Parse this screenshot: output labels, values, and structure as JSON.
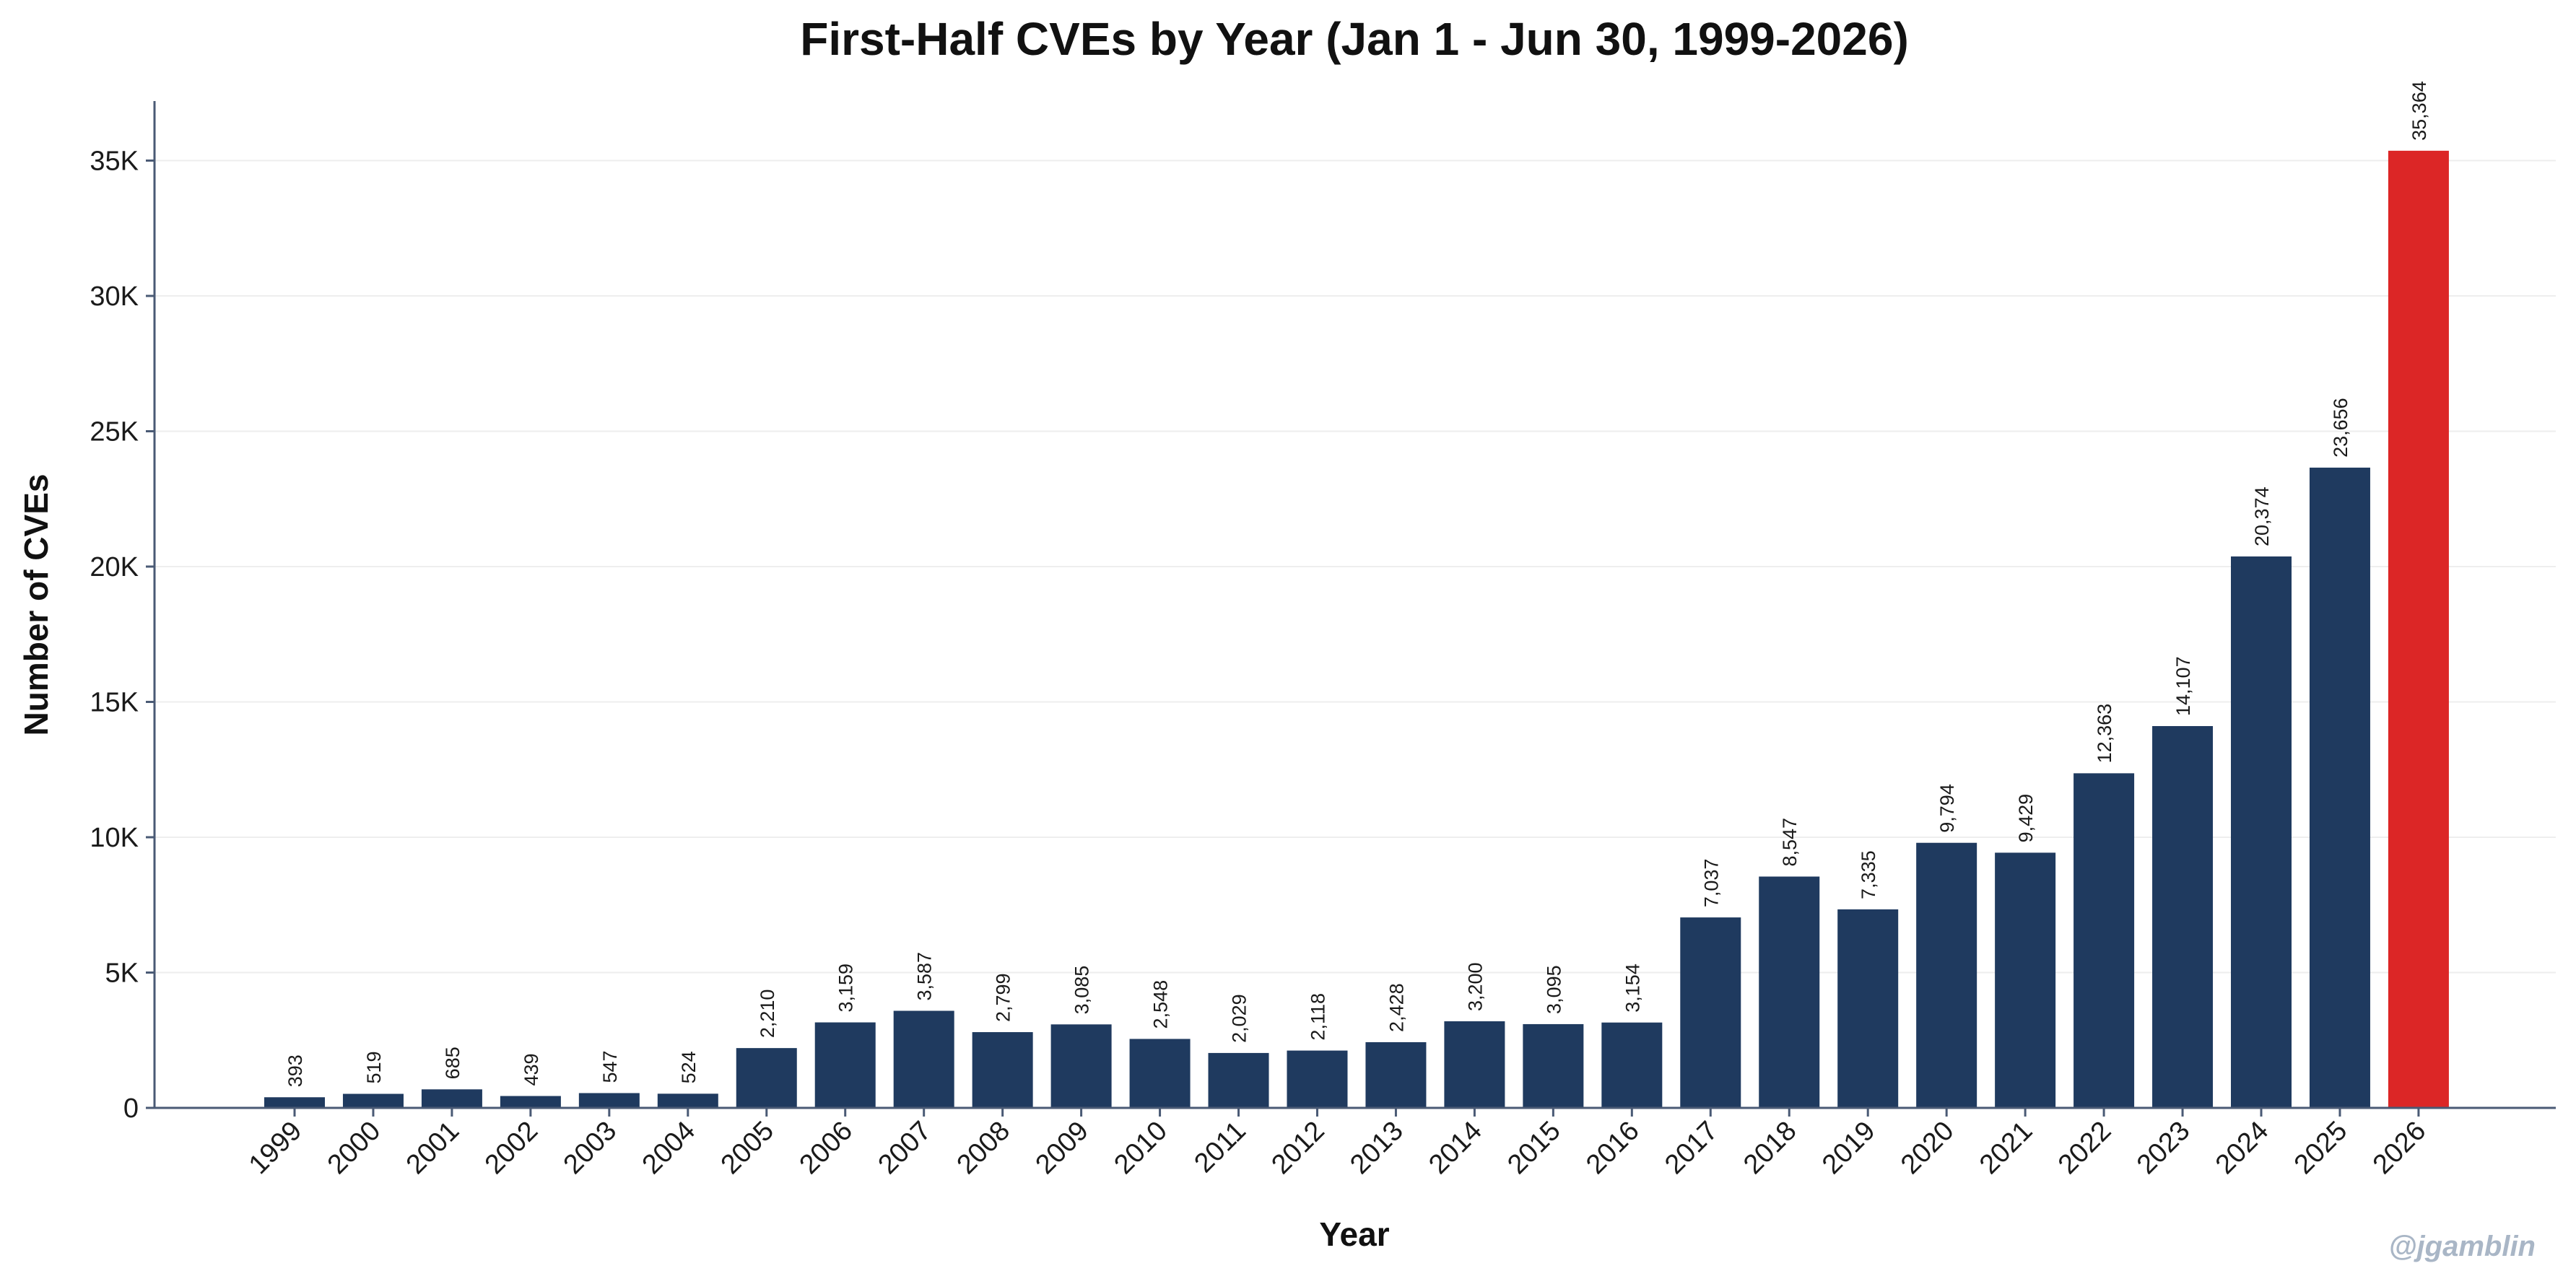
{
  "watermark": "@jgamblin",
  "colors": {
    "bar": "#1f3a5f",
    "highlight": "#dc2626",
    "axis": "#4a5a75",
    "grid": "#eeeeee",
    "watermark": "#a9b6c6"
  },
  "chart_data": {
    "type": "bar",
    "title": "First-Half CVEs by Year (Jan 1 - Jun 30, 1999-2026)",
    "xlabel": "Year",
    "ylabel": "Number of CVEs",
    "categories": [
      "1999",
      "2000",
      "2001",
      "2002",
      "2003",
      "2004",
      "2005",
      "2006",
      "2007",
      "2008",
      "2009",
      "2010",
      "2011",
      "2012",
      "2013",
      "2014",
      "2015",
      "2016",
      "2017",
      "2018",
      "2019",
      "2020",
      "2021",
      "2022",
      "2023",
      "2024",
      "2025",
      "2026"
    ],
    "values": [
      393,
      519,
      685,
      439,
      547,
      524,
      2210,
      3159,
      3587,
      2799,
      3085,
      2548,
      2029,
      2118,
      2428,
      3200,
      3095,
      3154,
      7037,
      8547,
      7335,
      9794,
      9429,
      12363,
      14107,
      20374,
      23656,
      35364
    ],
    "data_labels": [
      "393",
      "519",
      "685",
      "439",
      "547",
      "524",
      "2,210",
      "3,159",
      "3,587",
      "2,799",
      "3,085",
      "2,548",
      "2,029",
      "2,118",
      "2,428",
      "3,200",
      "3,095",
      "3,154",
      "7,037",
      "8,547",
      "7,335",
      "9,794",
      "9,429",
      "12,363",
      "14,107",
      "20,374",
      "23,656",
      "35,364"
    ],
    "highlight_category": "2026",
    "ylim": [
      0,
      37200
    ],
    "yticks": [
      0,
      5000,
      10000,
      15000,
      20000,
      25000,
      30000,
      35000
    ],
    "ytick_labels": [
      "0",
      "5K",
      "10K",
      "15K",
      "20K",
      "25K",
      "30K",
      "35K"
    ],
    "grid": "horizontal",
    "legend": "none"
  }
}
